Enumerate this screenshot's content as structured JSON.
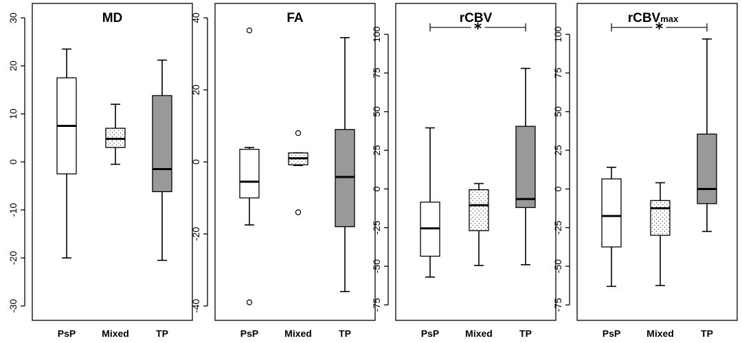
{
  "chart_data": [
    {
      "type": "boxplot",
      "title": "MD",
      "title_sub": "",
      "categories": [
        "PsP",
        "Mixed",
        "TP"
      ],
      "fills": [
        "#ffffff",
        "dotted",
        "#999999"
      ],
      "ylim": [
        -33,
        33
      ],
      "yticks": [
        -30,
        -20,
        -10,
        0,
        10,
        20,
        30
      ],
      "ytick_labels": [
        "-30",
        "-20",
        "-10",
        "0",
        "10",
        "20",
        "30"
      ],
      "boxes": [
        {
          "whisker_low": -20,
          "q1": -2.5,
          "median": 7.5,
          "q3": 17.5,
          "whisker_high": 23.5,
          "outliers": []
        },
        {
          "whisker_low": -0.5,
          "q1": 3,
          "median": 4.8,
          "q3": 7,
          "whisker_high": 12,
          "outliers": []
        },
        {
          "whisker_low": -20.5,
          "q1": -6.2,
          "median": -1.5,
          "q3": 13.8,
          "whisker_high": 21.2,
          "outliers": []
        }
      ],
      "significance": null
    },
    {
      "type": "boxplot",
      "title": "FA",
      "title_sub": "",
      "categories": [
        "PsP",
        "Mixed",
        "TP"
      ],
      "fills": [
        "#ffffff",
        "dotted",
        "#999999"
      ],
      "ylim": [
        -44,
        44
      ],
      "yticks": [
        -40,
        -20,
        0,
        20,
        40
      ],
      "ytick_labels": [
        "-40",
        "-20",
        "0",
        "20",
        "40"
      ],
      "boxes": [
        {
          "whisker_low": -17.5,
          "q1": -10,
          "median": -5.5,
          "q3": 3.5,
          "whisker_high": 4,
          "outliers": [
            36.5,
            -39
          ]
        },
        {
          "whisker_low": -1,
          "q1": -0.8,
          "median": 1,
          "q3": 2.5,
          "whisker_high": 2.5,
          "outliers": [
            8,
            -14
          ]
        },
        {
          "whisker_low": -36,
          "q1": -18,
          "median": -4.2,
          "q3": 9,
          "whisker_high": 34.5,
          "outliers": []
        }
      ],
      "significance": null
    },
    {
      "type": "boxplot",
      "title": "rCBV",
      "title_sub": "",
      "categories": [
        "PsP",
        "Mixed",
        "TP"
      ],
      "fills": [
        "#ffffff",
        "dotted",
        "#999999"
      ],
      "ylim": [
        -85,
        120
      ],
      "yticks": [
        -75,
        -50,
        -25,
        0,
        25,
        50,
        75,
        100
      ],
      "ytick_labels": [
        "-75",
        "-50",
        "-25",
        "0",
        "25",
        "50",
        "75",
        "100"
      ],
      "boxes": [
        {
          "whisker_low": -57,
          "q1": -43.5,
          "median": -25.5,
          "q3": -8.5,
          "whisker_high": 39.5,
          "outliers": []
        },
        {
          "whisker_low": -49.5,
          "q1": -27,
          "median": -10.5,
          "q3": -0.5,
          "whisker_high": 3.5,
          "outliers": []
        },
        {
          "whisker_low": -49,
          "q1": -12,
          "median": -6.5,
          "q3": 40.5,
          "whisker_high": 78,
          "outliers": []
        }
      ],
      "significance": {
        "from": 0,
        "to": 2,
        "y": 104.5,
        "label": "*"
      }
    },
    {
      "type": "boxplot",
      "title": "rCBV",
      "title_sub": "max",
      "categories": [
        "PsP",
        "Mixed",
        "TP"
      ],
      "fills": [
        "#ffffff",
        "dotted",
        "#999999"
      ],
      "ylim": [
        -85,
        120
      ],
      "yticks": [
        -75,
        -50,
        -25,
        0,
        25,
        50,
        75,
        100
      ],
      "ytick_labels": [
        "-75",
        "-50",
        "-25",
        "0",
        "25",
        "50",
        "75",
        "100"
      ],
      "boxes": [
        {
          "whisker_low": -63,
          "q1": -37.5,
          "median": -17.5,
          "q3": 6.5,
          "whisker_high": 14,
          "outliers": []
        },
        {
          "whisker_low": -62.5,
          "q1": -30,
          "median": -12.5,
          "q3": -7.5,
          "whisker_high": 4,
          "outliers": []
        },
        {
          "whisker_low": -27.5,
          "q1": -9.5,
          "median": 0,
          "q3": 35.5,
          "whisker_high": 97,
          "outliers": []
        }
      ],
      "significance": {
        "from": 0,
        "to": 2,
        "y": 104.5,
        "label": "*"
      }
    }
  ]
}
